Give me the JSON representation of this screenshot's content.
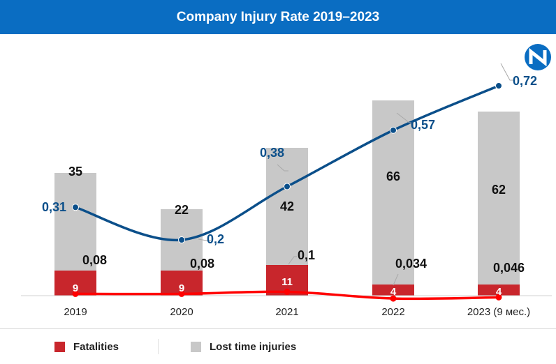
{
  "header": {
    "title": "Company Injury Rate 2019–2023"
  },
  "colors": {
    "header_bg": "#0a6dc2",
    "fatalities": "#c8262c",
    "lost_time": "#c8c8c8",
    "rate_line": "#0b4f8a",
    "fatality_line": "#ff0000"
  },
  "legend": [
    {
      "label": "Fatalities",
      "color": "#c8262c"
    },
    {
      "label": "Lost time injuries",
      "color": "#c8c8c8"
    }
  ],
  "chart_data": {
    "type": "bar",
    "stacked": true,
    "categories": [
      "2019",
      "2020",
      "2021",
      "2022",
      "2023 (9 мес.)"
    ],
    "series": [
      {
        "name": "Fatalities",
        "values": [
          9,
          9,
          11,
          4,
          4
        ],
        "labels": [
          "9",
          "9",
          "11",
          "4",
          "4"
        ]
      },
      {
        "name": "Lost time injuries",
        "values": [
          35,
          22,
          42,
          66,
          62
        ],
        "labels": [
          "35",
          "22",
          "42",
          "66",
          "62"
        ]
      }
    ],
    "lines": [
      {
        "values": [
          0.31,
          0.2,
          0.38,
          0.57,
          0.72
        ],
        "labels": [
          "0,31",
          "0,2",
          "0,38",
          "0,57",
          "0,72"
        ],
        "color": "#0b4f8a"
      },
      {
        "values": [
          0.08,
          0.08,
          0.1,
          0.034,
          0.046
        ],
        "labels": [
          "0,08",
          "0,08",
          "0,1",
          "0,034",
          "0,046"
        ],
        "color": "#ff0000"
      }
    ],
    "legend_position": "bottom",
    "grid": false
  }
}
